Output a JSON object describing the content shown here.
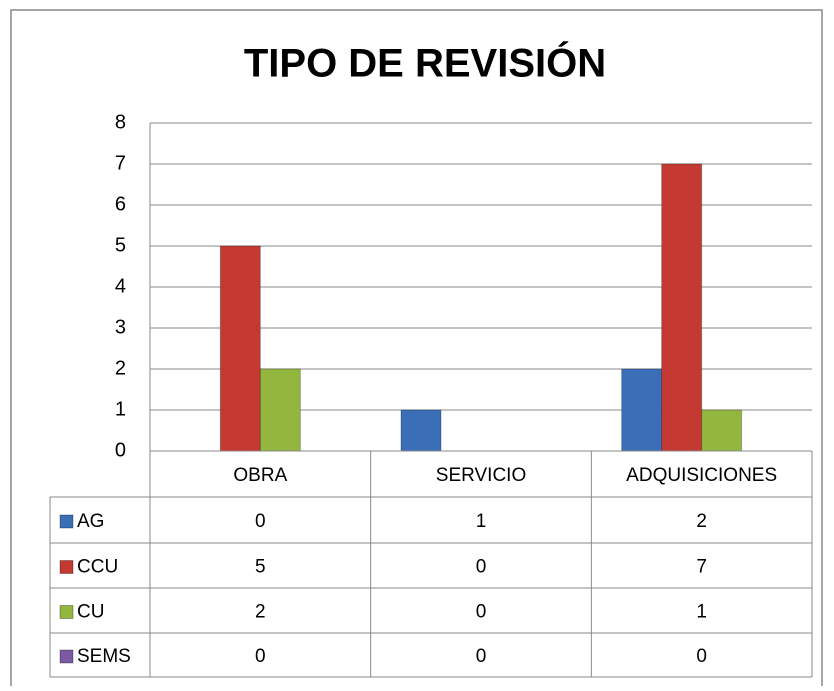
{
  "chart_data": {
    "type": "bar",
    "title": "TIPO DE REVISIÓN",
    "categories": [
      "OBRA",
      "SERVICIO",
      "ADQUISICIONES"
    ],
    "series": [
      {
        "name": "AG",
        "color": "#3a6fb8",
        "values": [
          0,
          1,
          2
        ]
      },
      {
        "name": "CCU",
        "color": "#c43a33",
        "values": [
          5,
          0,
          7
        ]
      },
      {
        "name": "CU",
        "color": "#93b63f",
        "values": [
          2,
          0,
          1
        ]
      },
      {
        "name": "SEMS",
        "color": "#7b59a3",
        "values": [
          0,
          0,
          0
        ]
      }
    ],
    "ylim": [
      0,
      8
    ],
    "yticks": [
      0,
      1,
      2,
      3,
      4,
      5,
      6,
      7,
      8
    ],
    "grid": true,
    "data_table": true
  }
}
